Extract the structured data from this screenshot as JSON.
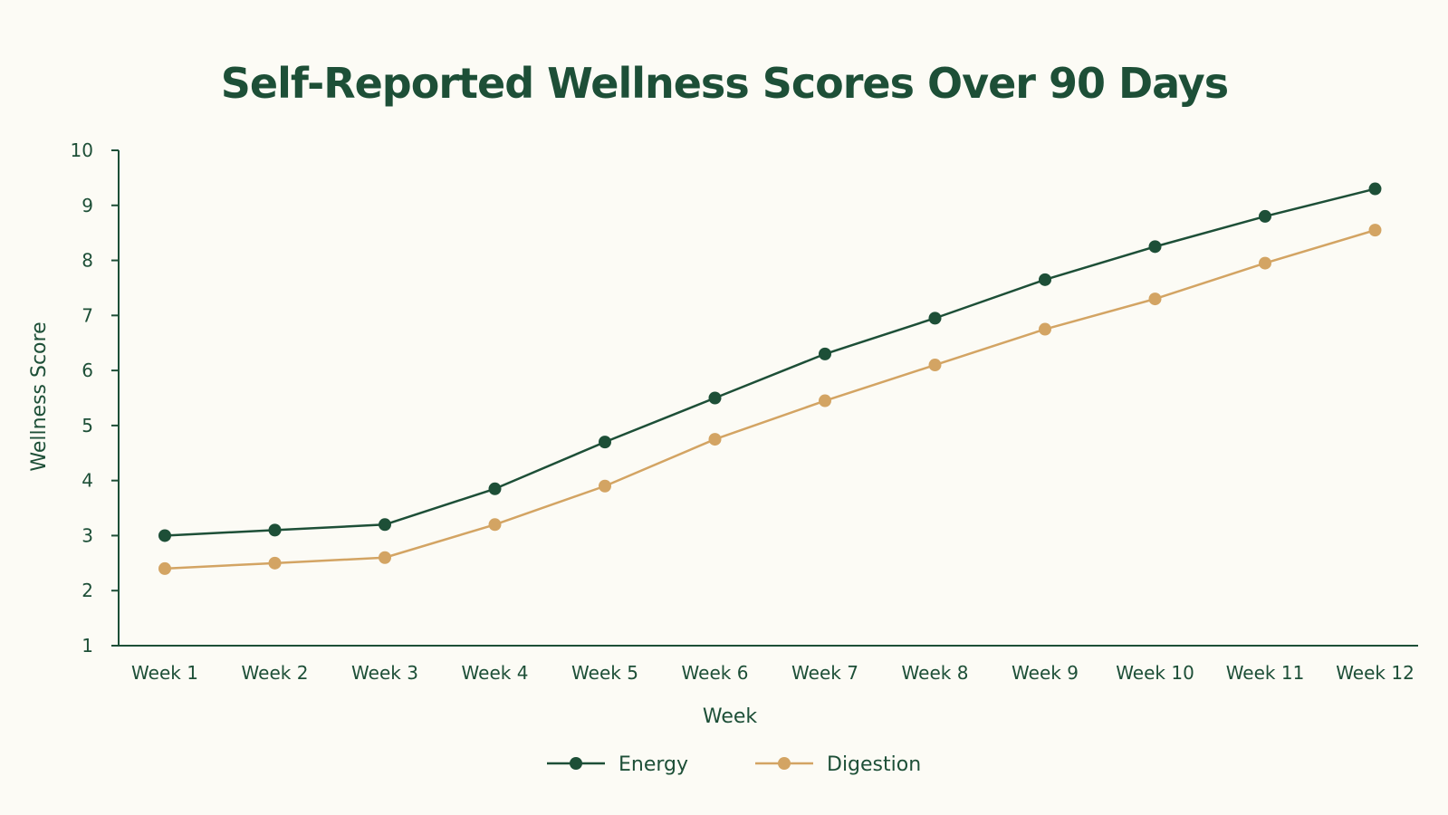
{
  "chart_data": {
    "type": "line",
    "title": "Self-Reported Wellness Scores Over 90 Days",
    "xlabel": "Week",
    "ylabel": "Wellness Score",
    "categories": [
      "Week 1",
      "Week 2",
      "Week 3",
      "Week 4",
      "Week 5",
      "Week 6",
      "Week 7",
      "Week 8",
      "Week 9",
      "Week 10",
      "Week 11",
      "Week 12"
    ],
    "ylim": [
      1,
      10
    ],
    "yticks": [
      1,
      2,
      3,
      4,
      5,
      6,
      7,
      8,
      9,
      10
    ],
    "grid": false,
    "legend_position": "bottom-center",
    "series": [
      {
        "name": "Energy",
        "color": "#1d4f37",
        "values": [
          3.0,
          3.1,
          3.2,
          3.85,
          4.7,
          5.5,
          6.3,
          6.95,
          7.65,
          8.25,
          8.8,
          9.3
        ]
      },
      {
        "name": "Digestion",
        "color": "#d3a463",
        "values": [
          2.4,
          2.5,
          2.6,
          3.2,
          3.9,
          4.75,
          5.45,
          6.1,
          6.75,
          7.3,
          7.95,
          8.55
        ]
      }
    ]
  },
  "colors": {
    "background": "#fcfbf5",
    "text": "#1d4f37",
    "axis": "#1d4f37"
  }
}
